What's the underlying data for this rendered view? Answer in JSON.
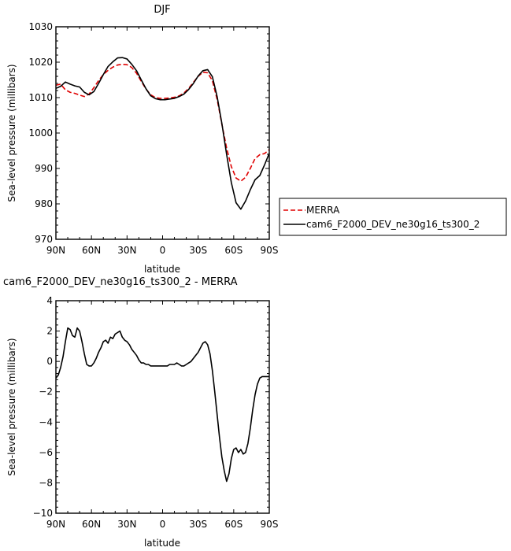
{
  "chart_data": [
    {
      "type": "line",
      "title": "DJF",
      "xlabel": "latitude",
      "ylabel": "Sea-level pressure (millibars)",
      "xlim": [
        90,
        -90
      ],
      "ylim": [
        970,
        1030
      ],
      "x_ticks": [
        90,
        60,
        30,
        0,
        -30,
        -60,
        -90
      ],
      "x_tick_labels": [
        "90N",
        "60N",
        "30N",
        "0",
        "30S",
        "60S",
        "90S"
      ],
      "y_ticks": [
        970,
        980,
        990,
        1000,
        1010,
        1020,
        1030
      ],
      "y_tick_labels": [
        "970",
        "980",
        "990",
        "1000",
        "1010",
        "1020",
        "1030"
      ],
      "legend_position": "right",
      "series": [
        {
          "name": "MERRA",
          "color": "#e00000",
          "dash": "dashed",
          "x": [
            90,
            86,
            82,
            78,
            74,
            70,
            66,
            62,
            58,
            54,
            50,
            46,
            42,
            38,
            34,
            30,
            26,
            22,
            18,
            14,
            10,
            6,
            2,
            -2,
            -6,
            -10,
            -14,
            -18,
            -22,
            -26,
            -30,
            -34,
            -38,
            -42,
            -46,
            -50,
            -54,
            -58,
            -62,
            -66,
            -70,
            -74,
            -78,
            -82,
            -86,
            -90
          ],
          "y": [
            1013.5,
            1013.8,
            1012.2,
            1011.5,
            1011.2,
            1010.7,
            1010.3,
            1011.0,
            1012.8,
            1014.8,
            1016.5,
            1017.7,
            1018.6,
            1019.2,
            1019.4,
            1019.3,
            1018.5,
            1016.9,
            1014.6,
            1012.4,
            1010.8,
            1010.0,
            1009.8,
            1009.8,
            1009.9,
            1010.1,
            1010.5,
            1011.3,
            1012.6,
            1014.3,
            1016.0,
            1017.2,
            1017.0,
            1014.8,
            1009.5,
            1002.5,
            995.8,
            990.5,
            987.3,
            986.4,
            987.5,
            990.0,
            992.8,
            993.9,
            994.2,
            995.3
          ]
        },
        {
          "name": "cam6_F2000_DEV_ne30g16_ts300_2",
          "color": "#000000",
          "dash": "solid",
          "x": [
            90,
            86,
            82,
            78,
            74,
            70,
            66,
            62,
            58,
            54,
            50,
            46,
            42,
            38,
            34,
            30,
            26,
            22,
            18,
            14,
            10,
            6,
            2,
            -2,
            -6,
            -10,
            -14,
            -18,
            -22,
            -26,
            -30,
            -34,
            -38,
            -42,
            -46,
            -50,
            -54,
            -58,
            -62,
            -66,
            -70,
            -74,
            -78,
            -82,
            -86,
            -90
          ],
          "y": [
            1012.6,
            1013.2,
            1014.4,
            1013.8,
            1013.3,
            1013.0,
            1011.5,
            1010.8,
            1011.7,
            1014.0,
            1016.5,
            1018.8,
            1020.1,
            1021.2,
            1021.3,
            1020.9,
            1019.4,
            1017.6,
            1015.0,
            1012.5,
            1010.5,
            1009.7,
            1009.4,
            1009.4,
            1009.6,
            1009.8,
            1010.3,
            1011.0,
            1012.3,
            1014.0,
            1016.1,
            1017.6,
            1017.9,
            1015.9,
            1010.3,
            1002.7,
            994.0,
            986.0,
            980.3,
            978.5,
            980.8,
            984.0,
            986.8,
            988.0,
            991.0,
            994.3
          ]
        }
      ]
    },
    {
      "type": "line",
      "title": "cam6_F2000_DEV_ne30g16_ts300_2 - MERRA",
      "xlabel": "latitude",
      "ylabel": "Sea-level pressure (millibars)",
      "xlim": [
        90,
        -90
      ],
      "ylim": [
        -10,
        4
      ],
      "x_ticks": [
        90,
        60,
        30,
        0,
        -30,
        -60,
        -90
      ],
      "x_tick_labels": [
        "90N",
        "60N",
        "30N",
        "0",
        "30S",
        "60S",
        "90S"
      ],
      "y_ticks": [
        -10,
        -8,
        -6,
        -4,
        -2,
        0,
        2,
        4
      ],
      "y_tick_labels": [
        "−10",
        "−8",
        "−6",
        "−4",
        "−2",
        "0",
        "2",
        "4"
      ],
      "series": [
        {
          "color": "#000000",
          "x": [
            90,
            88,
            86,
            84,
            82,
            80,
            78,
            76,
            74,
            72,
            70,
            68,
            66,
            64,
            62,
            60,
            58,
            56,
            54,
            52,
            50,
            48,
            46,
            44,
            42,
            40,
            38,
            36,
            34,
            32,
            30,
            28,
            26,
            24,
            22,
            20,
            18,
            16,
            14,
            12,
            10,
            8,
            6,
            4,
            2,
            0,
            -2,
            -4,
            -6,
            -8,
            -10,
            -12,
            -14,
            -16,
            -18,
            -20,
            -22,
            -24,
            -26,
            -28,
            -30,
            -32,
            -34,
            -36,
            -38,
            -40,
            -42,
            -44,
            -46,
            -48,
            -50,
            -52,
            -54,
            -56,
            -58,
            -60,
            -62,
            -64,
            -66,
            -68,
            -70,
            -72,
            -74,
            -76,
            -78,
            -80,
            -82,
            -84,
            -86,
            -88,
            -90
          ],
          "y": [
            -1.1,
            -0.9,
            -0.4,
            0.3,
            1.3,
            2.2,
            2.1,
            1.7,
            1.6,
            2.2,
            2.0,
            1.3,
            0.5,
            -0.2,
            -0.3,
            -0.3,
            -0.1,
            0.2,
            0.6,
            0.9,
            1.3,
            1.4,
            1.2,
            1.6,
            1.5,
            1.8,
            1.9,
            2.0,
            1.6,
            1.4,
            1.3,
            1.1,
            0.8,
            0.6,
            0.4,
            0.1,
            -0.1,
            -0.1,
            -0.2,
            -0.2,
            -0.3,
            -0.3,
            -0.3,
            -0.3,
            -0.3,
            -0.3,
            -0.3,
            -0.3,
            -0.2,
            -0.2,
            -0.2,
            -0.1,
            -0.2,
            -0.3,
            -0.3,
            -0.2,
            -0.1,
            0.0,
            0.2,
            0.4,
            0.6,
            0.9,
            1.2,
            1.3,
            1.1,
            0.5,
            -0.6,
            -2.0,
            -3.5,
            -5.0,
            -6.3,
            -7.2,
            -7.9,
            -7.4,
            -6.4,
            -5.8,
            -5.7,
            -6.0,
            -5.8,
            -6.1,
            -6.0,
            -5.4,
            -4.4,
            -3.2,
            -2.2,
            -1.5,
            -1.1,
            -1.0,
            -1.0,
            -1.0,
            -1.0
          ]
        }
      ]
    }
  ]
}
